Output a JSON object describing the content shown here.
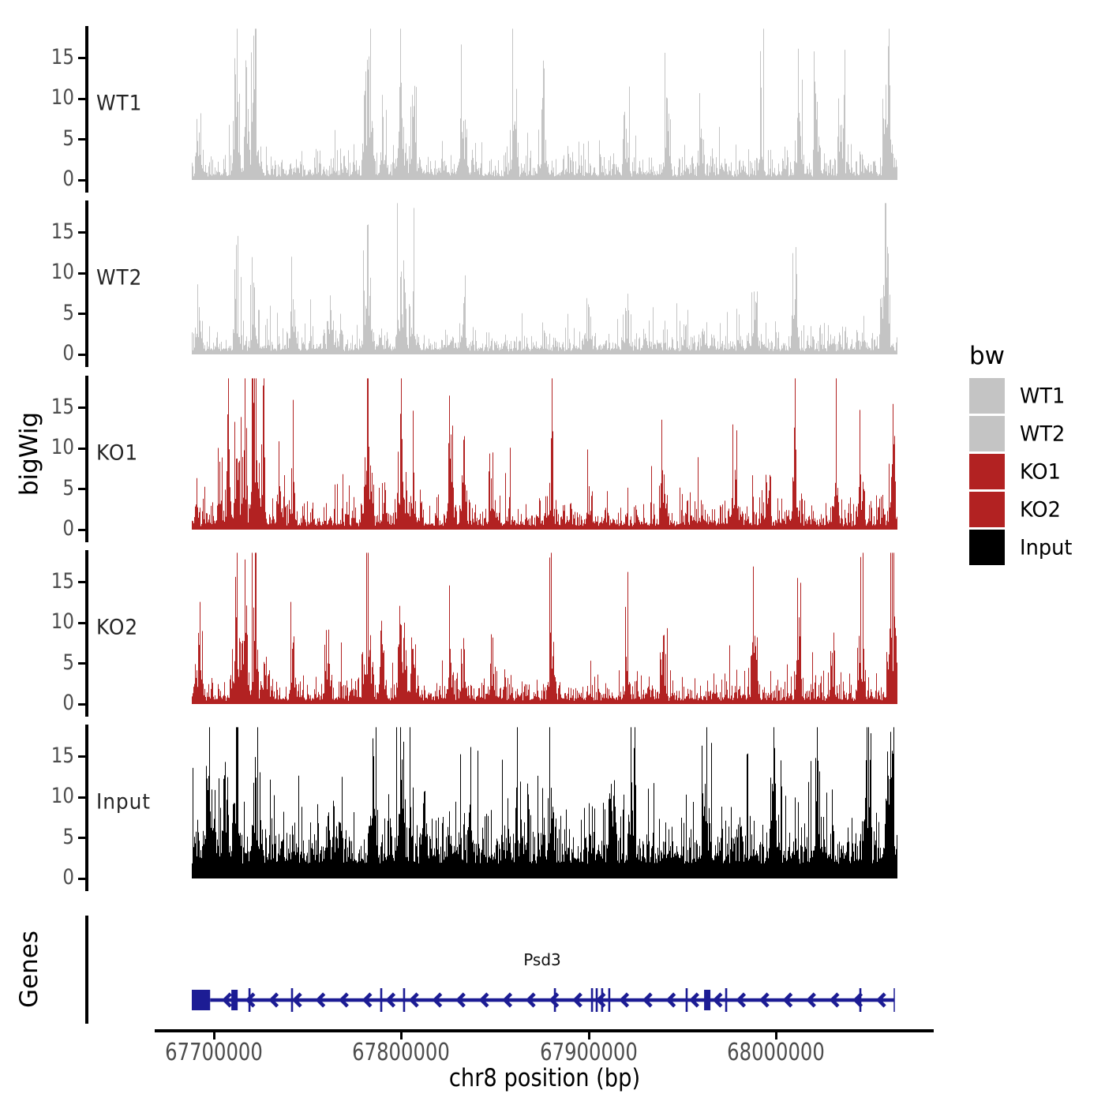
{
  "page": {
    "background": "#FFFFFF"
  },
  "chart_data": {
    "type": "area",
    "subtype": "genome-coverage-tracks",
    "xlabel": "chr8 position (bp)",
    "ylabel": "bigWig",
    "x_ticks": [
      "67700000",
      "67800000",
      "67900000",
      "68000000"
    ],
    "x_tick_values": [
      67700000,
      67800000,
      67900000,
      68000000
    ],
    "x_range_bp": [
      67688200,
      68065500
    ],
    "y_ticks": [
      "15",
      "10",
      "5",
      "0"
    ],
    "y_tick_values": [
      15,
      10,
      5,
      0
    ],
    "ylim": [
      0,
      18.6
    ],
    "grid": false,
    "tracks": [
      {
        "label": "WT1",
        "color": "#C4C4C4",
        "baseline_mean": 1.35,
        "peaks": [
          [
            67692000,
            6
          ],
          [
            67712000,
            8
          ],
          [
            67718000,
            9
          ],
          [
            67721500,
            11.5
          ],
          [
            67782000,
            14
          ],
          [
            67790000,
            7
          ],
          [
            67800000,
            9.5
          ],
          [
            67806000,
            8
          ],
          [
            67833000,
            7.5
          ],
          [
            67860000,
            7
          ],
          [
            67876000,
            6
          ],
          [
            67920000,
            6.5
          ],
          [
            67942000,
            6
          ],
          [
            67960000,
            6.5
          ],
          [
            67992000,
            7
          ],
          [
            68012000,
            8.5
          ],
          [
            68022000,
            8
          ],
          [
            68035000,
            7
          ],
          [
            68060000,
            14
          ]
        ]
      },
      {
        "label": "WT2",
        "color": "#C4C4C4",
        "baseline_mean": 1.25,
        "peaks": [
          [
            67692000,
            6
          ],
          [
            67712000,
            7
          ],
          [
            67721500,
            8.5
          ],
          [
            67742000,
            7
          ],
          [
            67762000,
            6
          ],
          [
            67782000,
            13
          ],
          [
            67800000,
            10.5
          ],
          [
            67806000,
            8
          ],
          [
            67833000,
            6.5
          ],
          [
            67900000,
            6
          ],
          [
            67920000,
            5.5
          ],
          [
            67988000,
            6
          ],
          [
            68010000,
            7
          ],
          [
            68058000,
            10.5
          ]
        ]
      },
      {
        "label": "KO1",
        "color": "#B22222",
        "baseline_mean": 1.4,
        "peaks": [
          [
            67703000,
            7
          ],
          [
            67708000,
            8.5
          ],
          [
            67712000,
            9
          ],
          [
            67716000,
            8
          ],
          [
            67721500,
            13
          ],
          [
            67726000,
            7
          ],
          [
            67735000,
            5.5
          ],
          [
            67742000,
            6.5
          ],
          [
            67782000,
            12.5
          ],
          [
            67791000,
            6
          ],
          [
            67800000,
            12
          ],
          [
            67806000,
            7
          ],
          [
            67826000,
            9
          ],
          [
            67833000,
            7
          ],
          [
            67848000,
            6.5
          ],
          [
            67880000,
            6
          ],
          [
            67900000,
            5.5
          ],
          [
            67940000,
            7
          ],
          [
            67978000,
            6
          ],
          [
            67995000,
            6
          ],
          [
            68010000,
            9.2
          ],
          [
            68032000,
            6
          ],
          [
            68045000,
            7
          ],
          [
            68062000,
            8.3
          ]
        ]
      },
      {
        "label": "KO2",
        "color": "#B22222",
        "baseline_mean": 1.3,
        "peaks": [
          [
            67692000,
            7.5
          ],
          [
            67712000,
            11
          ],
          [
            67716000,
            8
          ],
          [
            67721500,
            8
          ],
          [
            67728000,
            6
          ],
          [
            67742000,
            6
          ],
          [
            67760000,
            5.5
          ],
          [
            67782000,
            10.5
          ],
          [
            67790000,
            6.5
          ],
          [
            67800000,
            10
          ],
          [
            67806000,
            7
          ],
          [
            67826000,
            7
          ],
          [
            67833000,
            6
          ],
          [
            67848000,
            5.5
          ],
          [
            67880000,
            6.5
          ],
          [
            67920000,
            6
          ],
          [
            67940000,
            6.5
          ],
          [
            67988000,
            6.5
          ],
          [
            68012000,
            7
          ],
          [
            68030000,
            6.5
          ],
          [
            68045000,
            7
          ],
          [
            68062000,
            13.2
          ]
        ]
      },
      {
        "label": "Input",
        "color": "#000000",
        "baseline_mean": 4.3,
        "peaks": [
          [
            67697000,
            13
          ],
          [
            67706000,
            12
          ],
          [
            67712000,
            13.5
          ],
          [
            67722000,
            11
          ],
          [
            67785000,
            15.5
          ],
          [
            67800000,
            12.5
          ],
          [
            67812000,
            11
          ],
          [
            67880000,
            11.5
          ],
          [
            67912000,
            12
          ],
          [
            67923000,
            11
          ],
          [
            67962000,
            12
          ],
          [
            67998000,
            12
          ],
          [
            68022000,
            12
          ],
          [
            68048000,
            15
          ],
          [
            68061000,
            18.6
          ]
        ]
      }
    ],
    "gene_track": {
      "panel_label": "Genes",
      "genes": [
        {
          "name": "Psd3",
          "strand": "-",
          "start_bp": 67688200,
          "end_bp": 68063100,
          "utr_box_end_bp": 67698000,
          "color": "#1C1C94",
          "exon_marks": [
            {
              "bp": 67711000,
              "kind": "thick"
            },
            {
              "bp": 67719000,
              "kind": "thin"
            },
            {
              "bp": 67741700,
              "kind": "thin"
            },
            {
              "bp": 67789300,
              "kind": "thin"
            },
            {
              "bp": 67801500,
              "kind": "thin"
            },
            {
              "bp": 67882000,
              "kind": "thin"
            },
            {
              "bp": 67901800,
              "kind": "thin"
            },
            {
              "bp": 67904300,
              "kind": "thin"
            },
            {
              "bp": 67907200,
              "kind": "thin"
            },
            {
              "bp": 67911000,
              "kind": "thin"
            },
            {
              "bp": 67952300,
              "kind": "thin"
            },
            {
              "bp": 67963300,
              "kind": "thick"
            },
            {
              "bp": 67973400,
              "kind": "thin"
            },
            {
              "bp": 68045000,
              "kind": "thin"
            },
            {
              "bp": 68063100,
              "kind": "end"
            }
          ]
        }
      ]
    }
  },
  "legend": {
    "title": "bw",
    "entries": [
      {
        "label": "WT1",
        "color": "#C4C4C4"
      },
      {
        "label": "WT2",
        "color": "#C4C4C4"
      },
      {
        "label": "KO1",
        "color": "#B22222"
      },
      {
        "label": "KO2",
        "color": "#B22222"
      },
      {
        "label": "Input",
        "color": "#000000"
      }
    ]
  }
}
